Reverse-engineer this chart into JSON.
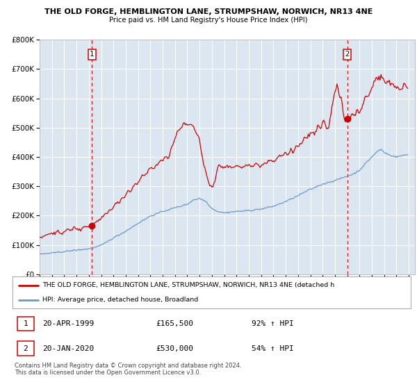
{
  "title_line1": "THE OLD FORGE, HEMBLINGTON LANE, STRUMPSHAW, NORWICH, NR13 4NE",
  "title_line2": "Price paid vs. HM Land Registry's House Price Index (HPI)",
  "sale1_date": "20-APR-1999",
  "sale1_price": 165500,
  "sale1_pct": "92% ↑ HPI",
  "sale2_date": "20-JAN-2020",
  "sale2_price": 530000,
  "sale2_pct": "54% ↑ HPI",
  "legend_line1": "THE OLD FORGE, HEMBLINGTON LANE, STRUMPSHAW, NORWICH, NR13 4NE (detached h",
  "legend_line2": "HPI: Average price, detached house, Broadland",
  "footnote": "Contains HM Land Registry data © Crown copyright and database right 2024.\nThis data is licensed under the Open Government Licence v3.0.",
  "hpi_color": "#6699cc",
  "price_color": "#cc0000",
  "vline_color": "#cc0000",
  "bg_color": "#dce6f1",
  "grid_color": "#ffffff",
  "ylim_max": 800000,
  "ylabel_vals": [
    0,
    100000,
    200000,
    300000,
    400000,
    500000,
    600000,
    700000,
    800000
  ]
}
